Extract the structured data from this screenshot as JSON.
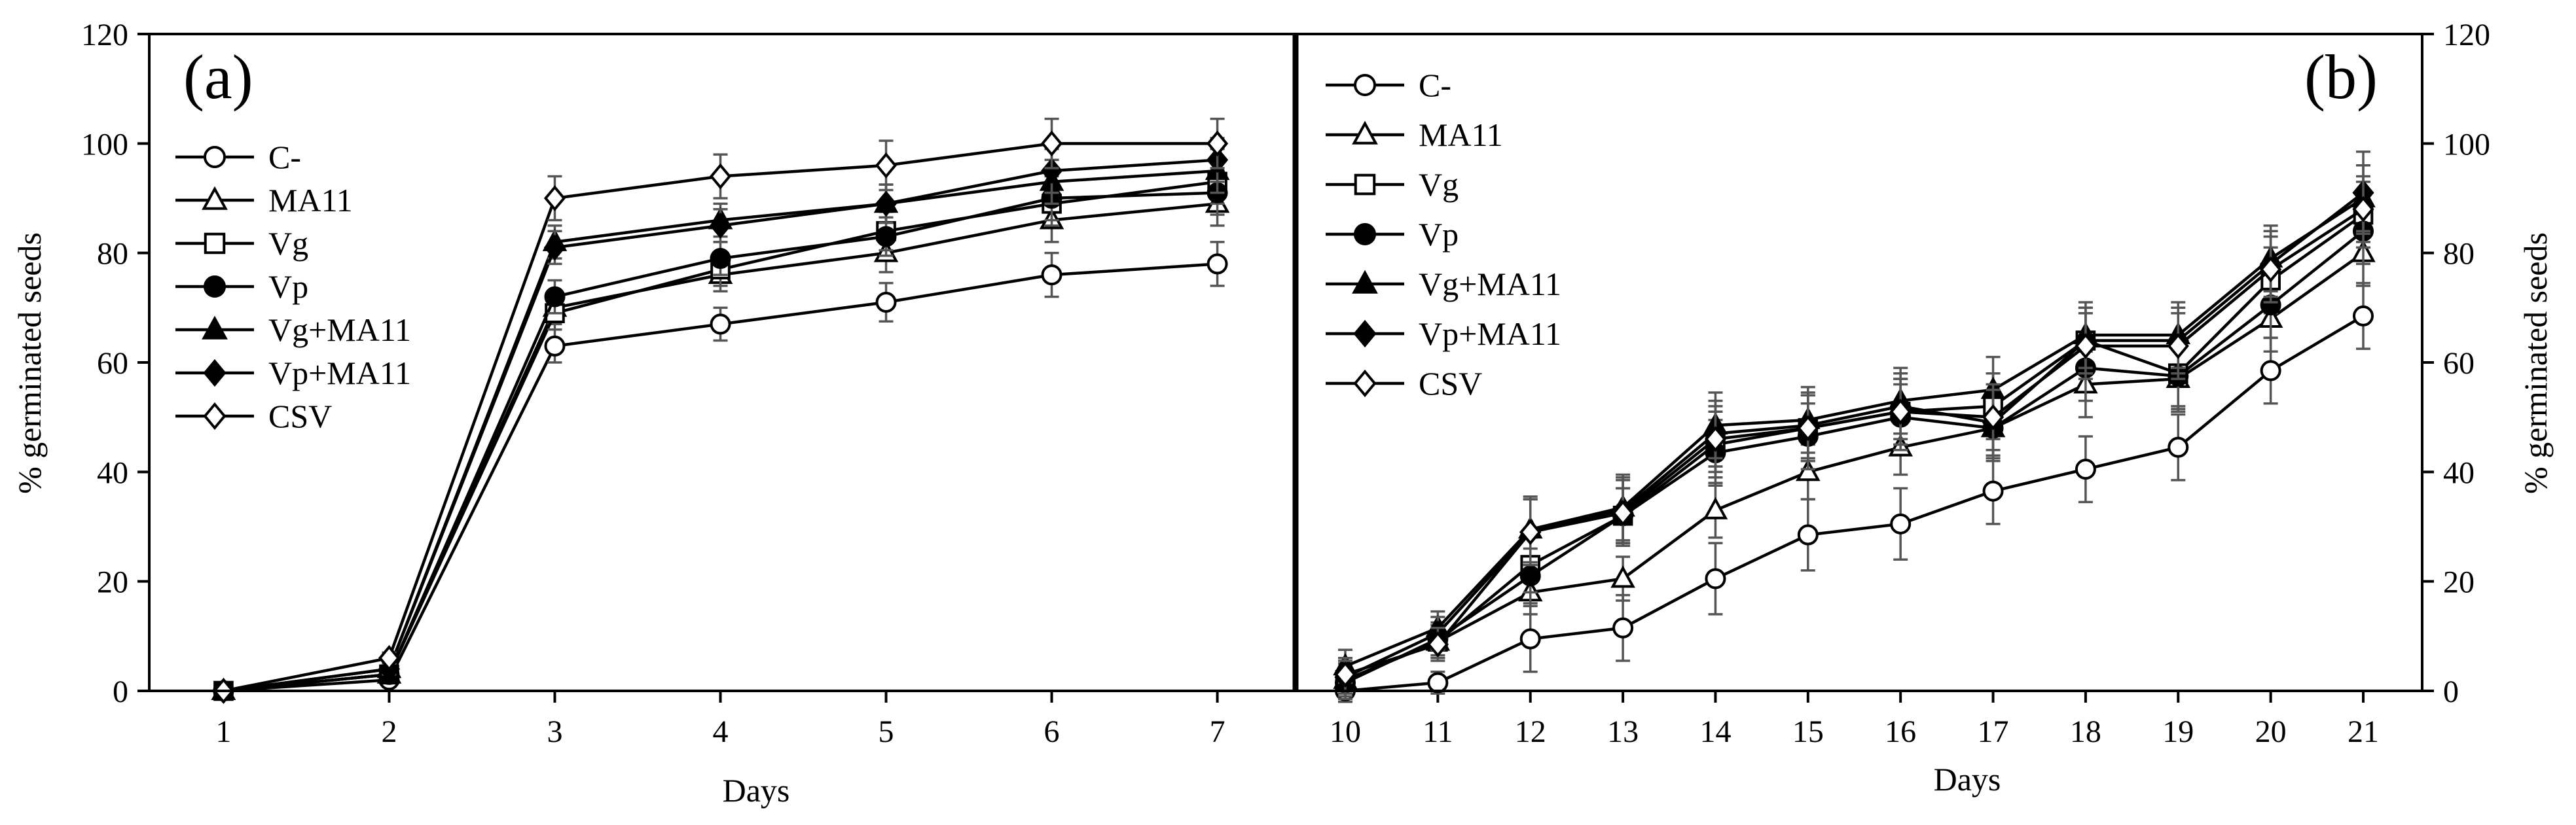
{
  "chart_data": [
    {
      "panel_label": "(a)",
      "type": "line",
      "xlabel": "Days",
      "ylabel": "% germinated seeds",
      "ylim": [
        0,
        120
      ],
      "y_ticks": [
        "0",
        "20",
        "40",
        "60",
        "80",
        "100",
        "120"
      ],
      "categories": [
        "1",
        "2",
        "3",
        "4",
        "5",
        "6",
        "7"
      ],
      "legend_position": "left",
      "series": [
        {
          "name": "C-",
          "marker": "circle-open",
          "values": [
            0,
            2,
            63,
            67,
            71,
            76,
            78
          ],
          "errors": [
            0,
            1,
            3,
            3,
            3.5,
            4,
            4
          ]
        },
        {
          "name": "MA11",
          "marker": "triangle-open",
          "values": [
            0,
            3,
            70,
            76,
            80,
            86,
            89
          ],
          "errors": [
            0,
            1,
            3,
            3,
            3.5,
            4,
            4
          ]
        },
        {
          "name": "Vg",
          "marker": "square-open",
          "values": [
            0,
            3,
            69,
            77,
            84,
            89,
            93
          ],
          "errors": [
            0,
            1,
            3,
            3,
            3.5,
            4,
            4
          ]
        },
        {
          "name": "Vp",
          "marker": "circle-filled",
          "values": [
            0,
            3,
            72,
            79,
            83,
            90,
            91
          ],
          "errors": [
            0,
            1,
            3,
            3,
            3.5,
            4,
            4
          ]
        },
        {
          "name": "Vg+MA11",
          "marker": "triangle-filled",
          "values": [
            0,
            4,
            82,
            86,
            89,
            93,
            95
          ],
          "errors": [
            0,
            1,
            3,
            3,
            3.5,
            4,
            4
          ]
        },
        {
          "name": "Vp+MA11",
          "marker": "diamond-filled",
          "values": [
            0,
            4,
            81,
            85,
            89,
            95,
            97
          ],
          "errors": [
            0,
            1,
            3,
            3,
            3.5,
            4,
            4
          ]
        },
        {
          "name": "CSV",
          "marker": "diamond-open",
          "values": [
            0,
            6,
            90,
            94,
            96,
            100,
            100
          ],
          "errors": [
            0,
            1,
            4,
            4,
            4.5,
            4.5,
            4.5
          ]
        }
      ]
    },
    {
      "panel_label": "(b)",
      "type": "line",
      "xlabel": "Days",
      "ylabel": "% germinated seeds",
      "ylim": [
        0,
        120
      ],
      "y_ticks": [
        "0",
        "20",
        "40",
        "60",
        "80",
        "100",
        "120"
      ],
      "categories": [
        "10",
        "11",
        "12",
        "13",
        "14",
        "15",
        "16",
        "17",
        "18",
        "19",
        "20",
        "21"
      ],
      "legend_position": "top-left",
      "series": [
        {
          "name": "C-",
          "marker": "circle-open",
          "values": [
            0,
            1.5,
            9.5,
            11.5,
            20.5,
            28.5,
            30.5,
            36.5,
            40.5,
            44.5,
            58.5,
            68.5
          ],
          "errors": [
            2,
            2,
            6,
            6,
            6.5,
            6.5,
            6.5,
            6,
            6,
            6,
            6,
            6
          ]
        },
        {
          "name": "MA11",
          "marker": "triangle-open",
          "values": [
            2,
            9,
            18,
            20.5,
            33,
            40,
            44.5,
            48,
            56,
            57,
            68,
            80
          ],
          "errors": [
            3,
            3,
            4,
            4,
            5,
            5,
            5,
            5,
            6,
            6,
            6,
            6
          ]
        },
        {
          "name": "Vg",
          "marker": "square-open",
          "values": [
            2,
            9,
            23,
            32,
            45,
            48,
            51,
            52,
            64,
            58,
            75,
            87
          ],
          "errors": [
            3,
            3,
            5,
            5,
            6,
            6,
            6,
            6,
            6,
            6,
            6,
            6
          ]
        },
        {
          "name": "Vp",
          "marker": "circle-filled",
          "values": [
            1.5,
            9.5,
            21,
            32,
            43.5,
            46.5,
            50,
            48,
            59,
            57.5,
            70.5,
            84
          ],
          "errors": [
            3,
            3,
            5,
            5,
            6,
            6,
            6,
            6,
            6,
            6,
            6,
            6
          ]
        },
        {
          "name": "Vg+MA11",
          "marker": "triangle-filled",
          "values": [
            4.5,
            11.5,
            29.5,
            33.5,
            48.5,
            49.5,
            53,
            55,
            65,
            65,
            79,
            90
          ],
          "errors": [
            3,
            3,
            6,
            6,
            6,
            6,
            6,
            6,
            6,
            6,
            6,
            6
          ]
        },
        {
          "name": "Vp+MA11",
          "marker": "diamond-filled",
          "values": [
            2.5,
            10.5,
            29,
            33,
            47,
            48.5,
            52,
            49,
            64,
            64,
            78,
            91
          ],
          "errors": [
            3,
            3,
            6,
            6,
            6,
            6,
            6,
            6,
            6,
            6,
            6,
            7.5
          ]
        },
        {
          "name": "CSV",
          "marker": "diamond-open",
          "values": [
            3,
            8.5,
            29,
            32.5,
            46,
            48,
            51,
            50,
            63,
            63,
            77,
            88
          ],
          "errors": [
            3,
            3,
            6,
            6,
            6,
            6,
            6,
            6,
            6,
            6,
            6,
            6
          ]
        }
      ]
    }
  ]
}
